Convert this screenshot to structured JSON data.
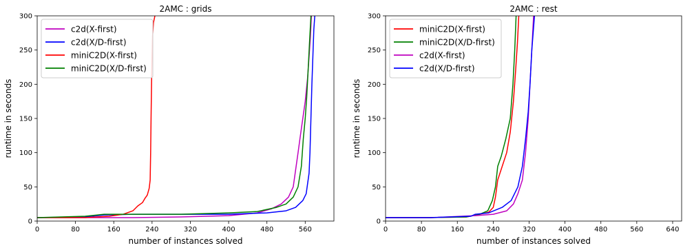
{
  "chart_data": [
    {
      "type": "line",
      "title": "2AMC : grids",
      "xlabel": "number of instances solved",
      "ylabel": "runtime in seconds",
      "xlim": [
        0,
        620
      ],
      "ylim": [
        0,
        300
      ],
      "xticks": [
        0,
        80,
        160,
        240,
        320,
        400,
        480,
        560
      ],
      "yticks": [
        0,
        50,
        100,
        150,
        200,
        250,
        300
      ],
      "legend_position": "top-left",
      "series": [
        {
          "name": "c2d(X-first)",
          "color": "#bf00bf",
          "points": [
            [
              0,
              5
            ],
            [
              100,
              5
            ],
            [
              200,
              5
            ],
            [
              300,
              6
            ],
            [
              400,
              8
            ],
            [
              460,
              12
            ],
            [
              490,
              18
            ],
            [
              510,
              25
            ],
            [
              525,
              35
            ],
            [
              535,
              50
            ],
            [
              540,
              75
            ],
            [
              545,
              100
            ],
            [
              550,
              125
            ],
            [
              555,
              150
            ],
            [
              560,
              175
            ],
            [
              565,
              210
            ],
            [
              568,
              240
            ],
            [
              571,
              270
            ],
            [
              573,
              300
            ]
          ]
        },
        {
          "name": "c2d(X/D-first)",
          "color": "#0000ff",
          "points": [
            [
              0,
              5
            ],
            [
              100,
              6
            ],
            [
              140,
              9
            ],
            [
              200,
              10
            ],
            [
              300,
              10
            ],
            [
              400,
              10
            ],
            [
              480,
              12
            ],
            [
              520,
              15
            ],
            [
              540,
              20
            ],
            [
              555,
              30
            ],
            [
              562,
              40
            ],
            [
              565,
              55
            ],
            [
              568,
              70
            ],
            [
              570,
              100
            ],
            [
              572,
              150
            ],
            [
              574,
              200
            ],
            [
              576,
              240
            ],
            [
              578,
              280
            ],
            [
              580,
              300
            ]
          ]
        },
        {
          "name": "miniC2D(X-first)",
          "color": "#ff0000",
          "points": [
            [
              0,
              5
            ],
            [
              100,
              5
            ],
            [
              150,
              7
            ],
            [
              180,
              10
            ],
            [
              200,
              15
            ],
            [
              210,
              22
            ],
            [
              220,
              27
            ],
            [
              225,
              33
            ],
            [
              230,
              38
            ],
            [
              234,
              48
            ],
            [
              236,
              60
            ],
            [
              237,
              100
            ],
            [
              238,
              150
            ],
            [
              239,
              200
            ],
            [
              240,
              240
            ],
            [
              241,
              270
            ],
            [
              243,
              290
            ],
            [
              246,
              300
            ]
          ]
        },
        {
          "name": "miniC2D(X/D-first)",
          "color": "#008000",
          "points": [
            [
              0,
              5
            ],
            [
              100,
              7
            ],
            [
              140,
              10
            ],
            [
              200,
              10
            ],
            [
              300,
              10
            ],
            [
              400,
              12
            ],
            [
              460,
              14
            ],
            [
              500,
              20
            ],
            [
              520,
              25
            ],
            [
              535,
              35
            ],
            [
              545,
              50
            ],
            [
              552,
              80
            ],
            [
              556,
              120
            ],
            [
              560,
              150
            ],
            [
              563,
              180
            ],
            [
              566,
              220
            ],
            [
              569,
              260
            ],
            [
              572,
              300
            ]
          ]
        }
      ]
    },
    {
      "type": "line",
      "title": "2AMC : rest",
      "xlabel": "number of instances solved",
      "ylabel": "runtime in seconds",
      "xlim": [
        0,
        660
      ],
      "ylim": [
        0,
        300
      ],
      "xticks": [
        0,
        80,
        160,
        240,
        320,
        400,
        480,
        560,
        640
      ],
      "yticks": [
        0,
        50,
        100,
        150,
        200,
        250,
        300
      ],
      "legend_position": "top-left",
      "series": [
        {
          "name": "miniC2D(X-first)",
          "color": "#ff0000",
          "points": [
            [
              0,
              5
            ],
            [
              100,
              5
            ],
            [
              180,
              6
            ],
            [
              210,
              10
            ],
            [
              230,
              13
            ],
            [
              240,
              20
            ],
            [
              245,
              35
            ],
            [
              250,
              60
            ],
            [
              260,
              80
            ],
            [
              270,
              100
            ],
            [
              278,
              130
            ],
            [
              285,
              175
            ],
            [
              290,
              220
            ],
            [
              294,
              260
            ],
            [
              297,
              300
            ]
          ]
        },
        {
          "name": "miniC2D(X/D-first)",
          "color": "#008000",
          "points": [
            [
              0,
              5
            ],
            [
              100,
              5
            ],
            [
              180,
              6
            ],
            [
              210,
              10
            ],
            [
              228,
              15
            ],
            [
              238,
              30
            ],
            [
              245,
              50
            ],
            [
              250,
              80
            ],
            [
              258,
              95
            ],
            [
              268,
              120
            ],
            [
              278,
              150
            ],
            [
              284,
              200
            ],
            [
              288,
              250
            ],
            [
              291,
              300
            ]
          ]
        },
        {
          "name": "c2d(X-first)",
          "color": "#bf00bf",
          "points": [
            [
              0,
              5
            ],
            [
              100,
              5
            ],
            [
              200,
              8
            ],
            [
              240,
              10
            ],
            [
              270,
              15
            ],
            [
              285,
              25
            ],
            [
              295,
              40
            ],
            [
              305,
              60
            ],
            [
              312,
              100
            ],
            [
              318,
              150
            ],
            [
              322,
              200
            ],
            [
              326,
              250
            ],
            [
              330,
              300
            ]
          ]
        },
        {
          "name": "c2d(X/D-first)",
          "color": "#0000ff",
          "points": [
            [
              0,
              5
            ],
            [
              100,
              5
            ],
            [
              190,
              7
            ],
            [
              200,
              10
            ],
            [
              230,
              12
            ],
            [
              260,
              20
            ],
            [
              280,
              30
            ],
            [
              295,
              50
            ],
            [
              305,
              80
            ],
            [
              312,
              120
            ],
            [
              318,
              160
            ],
            [
              322,
              200
            ],
            [
              326,
              250
            ],
            [
              332,
              300
            ]
          ]
        }
      ]
    }
  ]
}
